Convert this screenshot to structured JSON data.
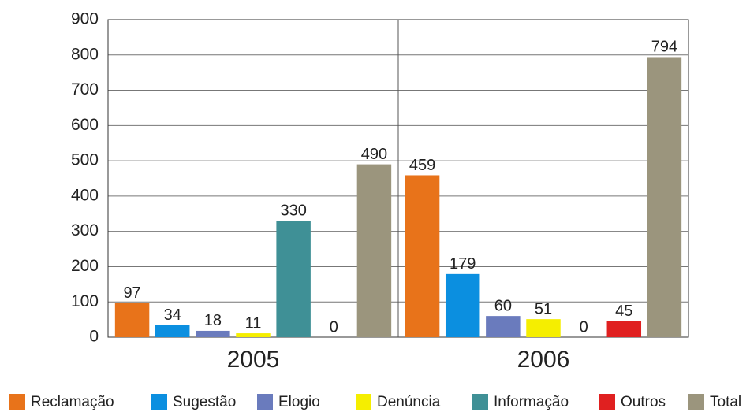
{
  "chart_data": {
    "type": "bar",
    "categories": [
      "2005",
      "2006"
    ],
    "series": [
      {
        "name": "Reclamação",
        "color": "#e8731a",
        "values": [
          97,
          459
        ]
      },
      {
        "name": "Sugestão",
        "color": "#0b8fe0",
        "values": [
          34,
          179
        ]
      },
      {
        "name": "Elogio",
        "color": "#6a7bbd",
        "values": [
          18,
          60
        ]
      },
      {
        "name": "Denúncia",
        "color": "#f5ee00",
        "values": [
          11,
          51
        ]
      },
      {
        "name": "Informação",
        "color": "#3f9096",
        "values": [
          330,
          0
        ]
      },
      {
        "name": "Outros",
        "color": "#e02020",
        "values": [
          0,
          45
        ]
      },
      {
        "name": "Total",
        "color": "#9b957d",
        "values": [
          490,
          794
        ]
      }
    ],
    "ylim": [
      0,
      900
    ],
    "yticks": [
      0,
      100,
      200,
      300,
      400,
      500,
      600,
      700,
      800,
      900
    ],
    "grid": true,
    "legend": "bottom"
  }
}
